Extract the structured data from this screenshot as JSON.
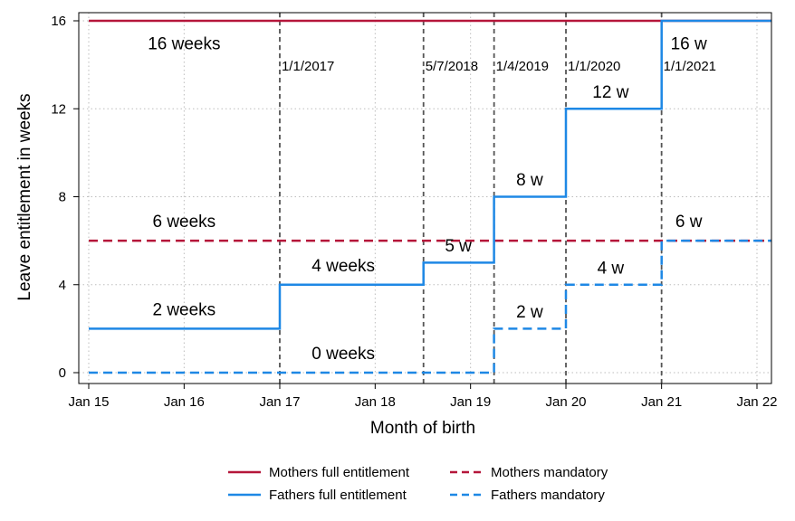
{
  "chart_data": {
    "type": "line",
    "xlabel": "Month of birth",
    "ylabel": "Leave entitlement in weeks",
    "xlim": [
      "2015-01-01",
      "2022-02-01"
    ],
    "ylim": [
      0,
      16
    ],
    "grid": true,
    "x_ticks": [
      {
        "date": "2015-01-01",
        "label": "Jan 15"
      },
      {
        "date": "2016-01-01",
        "label": "Jan 16"
      },
      {
        "date": "2017-01-01",
        "label": "Jan 17"
      },
      {
        "date": "2018-01-01",
        "label": "Jan 18"
      },
      {
        "date": "2019-01-01",
        "label": "Jan 19"
      },
      {
        "date": "2020-01-01",
        "label": "Jan 20"
      },
      {
        "date": "2021-01-01",
        "label": "Jan 21"
      },
      {
        "date": "2022-01-01",
        "label": "Jan 22"
      }
    ],
    "y_ticks": [
      0,
      4,
      8,
      12,
      16
    ],
    "vlines": [
      {
        "date": "2017-01-01",
        "label": "1/1/2017"
      },
      {
        "date": "2018-07-05",
        "label": "5/7/2018"
      },
      {
        "date": "2019-04-01",
        "label": "1/4/2019"
      },
      {
        "date": "2020-01-01",
        "label": "1/1/2020"
      },
      {
        "date": "2021-01-01",
        "label": "1/1/2021"
      }
    ],
    "series": [
      {
        "name": "Mothers full entitlement",
        "color": "#b5163a",
        "dash": "solid",
        "steps": [
          {
            "from": "2015-01-01",
            "to": "2022-02-01",
            "value": 16
          }
        ]
      },
      {
        "name": "Mothers mandatory",
        "color": "#b5163a",
        "dash": "dashed",
        "steps": [
          {
            "from": "2015-01-01",
            "to": "2022-02-01",
            "value": 6
          }
        ]
      },
      {
        "name": "Fathers full entitlement",
        "color": "#1e88e5",
        "dash": "solid",
        "steps": [
          {
            "from": "2015-01-01",
            "to": "2017-01-01",
            "value": 2
          },
          {
            "from": "2017-01-01",
            "to": "2018-07-05",
            "value": 4
          },
          {
            "from": "2018-07-05",
            "to": "2019-04-01",
            "value": 5
          },
          {
            "from": "2019-04-01",
            "to": "2020-01-01",
            "value": 8
          },
          {
            "from": "2020-01-01",
            "to": "2021-01-01",
            "value": 12
          },
          {
            "from": "2021-01-01",
            "to": "2022-02-01",
            "value": 16
          }
        ]
      },
      {
        "name": "Fathers mandatory",
        "color": "#1e88e5",
        "dash": "dashed",
        "steps": [
          {
            "from": "2015-01-01",
            "to": "2019-04-01",
            "value": 0
          },
          {
            "from": "2019-04-01",
            "to": "2020-01-01",
            "value": 2
          },
          {
            "from": "2020-01-01",
            "to": "2021-01-01",
            "value": 4
          },
          {
            "from": "2021-01-01",
            "to": "2022-02-01",
            "value": 6
          }
        ]
      }
    ],
    "annotations": [
      {
        "text": "16 weeks",
        "date": "2016-01-01",
        "value": 15.0
      },
      {
        "text": "6 weeks",
        "date": "2016-01-01",
        "value": 6.9
      },
      {
        "text": "2 weeks",
        "date": "2016-01-01",
        "value": 2.9
      },
      {
        "text": "4 weeks",
        "date": "2017-09-01",
        "value": 4.9
      },
      {
        "text": "0 weeks",
        "date": "2017-09-01",
        "value": 0.9
      },
      {
        "text": "5 w",
        "date": "2018-11-15",
        "value": 5.8
      },
      {
        "text": "8 w",
        "date": "2019-08-15",
        "value": 8.8
      },
      {
        "text": "2 w",
        "date": "2019-08-15",
        "value": 2.8
      },
      {
        "text": "12 w",
        "date": "2020-06-20",
        "value": 12.8
      },
      {
        "text": "4 w",
        "date": "2020-06-20",
        "value": 4.8
      },
      {
        "text": "16 w",
        "date": "2021-04-15",
        "value": 15.0
      },
      {
        "text": "6 w",
        "date": "2021-04-15",
        "value": 6.9
      }
    ],
    "legend": {
      "position": "bottom",
      "entries": [
        {
          "name": "Mothers full entitlement",
          "color": "#b5163a",
          "dash": "solid"
        },
        {
          "name": "Mothers mandatory",
          "color": "#b5163a",
          "dash": "dashed"
        },
        {
          "name": "Fathers full entitlement",
          "color": "#1e88e5",
          "dash": "solid"
        },
        {
          "name": "Fathers mandatory",
          "color": "#1e88e5",
          "dash": "dashed"
        }
      ]
    }
  }
}
